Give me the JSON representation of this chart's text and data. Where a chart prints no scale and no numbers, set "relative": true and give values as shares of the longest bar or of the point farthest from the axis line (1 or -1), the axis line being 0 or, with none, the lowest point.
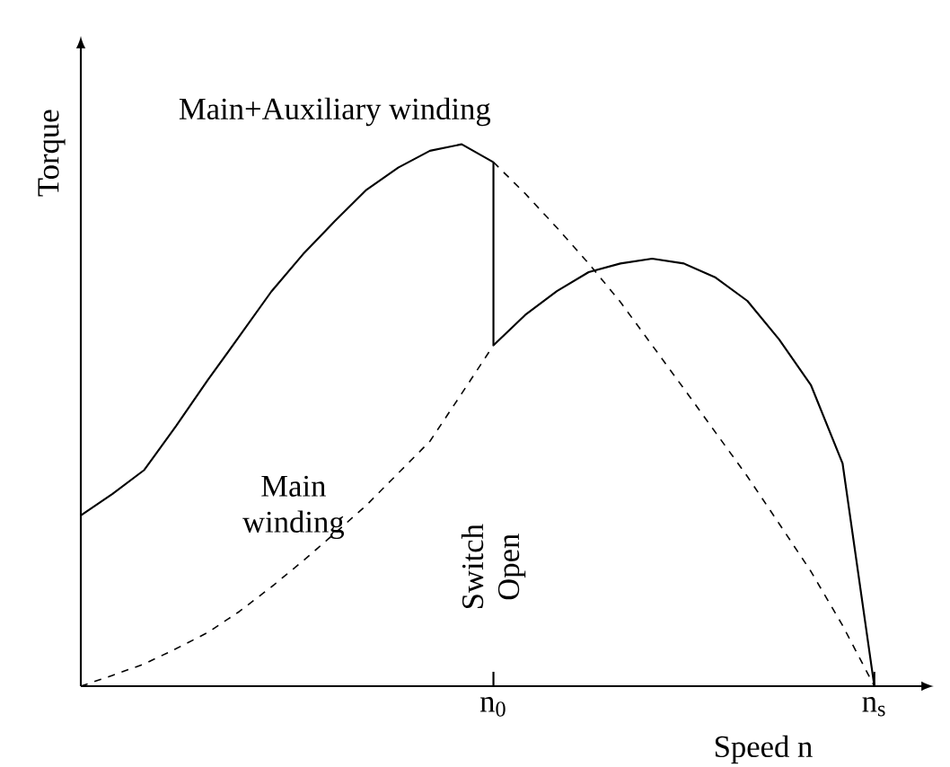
{
  "chart_data": {
    "type": "line",
    "relative": true,
    "xlabel": "Speed n",
    "ylabel": "Torque",
    "categories": [
      null,
      null,
      null,
      null,
      null,
      null,
      null,
      null,
      null,
      null,
      null,
      null,
      null,
      "n$_{0}$",
      null,
      null,
      null,
      null,
      null,
      null,
      null,
      null,
      null,
      null,
      null,
      "n$_{s}$"
    ],
    "series": [
      {
        "color": "#000000",
        "line_style": "solid",
        "values": [
          0.315,
          0.355,
          0.399,
          0.48,
          0.565,
          0.646,
          0.728,
          0.797,
          0.858,
          0.916,
          0.957,
          0.988,
          1.0,
          0.967,
          null,
          null,
          null,
          null,
          null,
          null,
          null,
          null,
          null,
          null,
          null,
          null
        ]
      },
      {
        "color": "#000000",
        "line_style": "dashed",
        "values": [
          null,
          null,
          null,
          null,
          null,
          null,
          null,
          null,
          null,
          null,
          null,
          null,
          null,
          0.967,
          0.909,
          0.846,
          0.78,
          0.709,
          0.629,
          0.549,
          0.468,
          0.387,
          0.3,
          0.212,
          0.112,
          0
        ]
      },
      {
        "color": "#000000",
        "line_style": "dashed",
        "values": [
          0,
          0.02,
          0.041,
          0.069,
          0.099,
          0.138,
          0.183,
          0.231,
          0.282,
          0.334,
          0.393,
          0.452,
          0.54,
          0.629,
          null,
          null,
          null,
          null,
          null,
          null,
          null,
          null,
          null,
          null,
          null,
          null
        ]
      },
      {
        "color": "#000000",
        "line_style": "solid",
        "values": [
          null,
          null,
          null,
          null,
          null,
          null,
          null,
          null,
          null,
          null,
          null,
          null,
          null,
          0.629,
          0.685,
          0.729,
          0.764,
          0.78,
          0.789,
          0.78,
          0.754,
          0.711,
          0.64,
          0.556,
          0.411,
          0
        ]
      }
    ],
    "annotations": [
      "Main+Auxiliary winding",
      "Main winding",
      "Switch Open"
    ],
    "marker": "none"
  }
}
